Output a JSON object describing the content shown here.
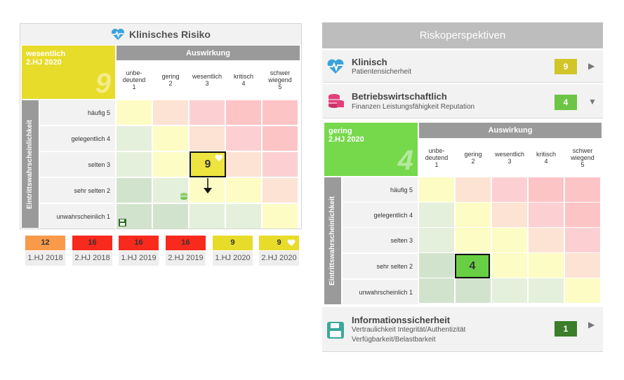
{
  "colors": {
    "green_dark": "#d2e3cd",
    "green_light": "#e5f0dc",
    "yellow": "#fdfcc5",
    "peach": "#fde3d3",
    "pink": "#fcd0d2",
    "red": "#fdc4c6",
    "status_yellow": "#e8dc2a",
    "status_green": "#76d84b",
    "marker_yellow": "#eee43f",
    "marker_green": "#68cf44"
  },
  "left": {
    "title": "Klinisches Risiko",
    "status_label": "wesentlich",
    "status_period": "2.HJ 2020",
    "status_value": "9",
    "axis_top": "Auswirkung",
    "axis_side": "Eintrittswahrscheinlichkeit",
    "columns": [
      "unbe-\ndeutend\n1",
      "gering\n2",
      "wesentlich\n3",
      "kritisch\n4",
      "schwer\nwiegend\n5"
    ],
    "rows": [
      "häufig 5",
      "gelegentlich 4",
      "selten 3",
      "sehr selten 2",
      "unwahrscheinlich 1"
    ],
    "marker_value": "9",
    "history": [
      {
        "value": "12",
        "label": "1.HJ 2018",
        "color": "#f99a4a"
      },
      {
        "value": "16",
        "label": "2.HJ 2018",
        "color": "#f72a1d"
      },
      {
        "value": "16",
        "label": "1.HJ 2019",
        "color": "#f72a1d"
      },
      {
        "value": "16",
        "label": "2.HJ 2019",
        "color": "#f72a1d"
      },
      {
        "value": "9",
        "label": "1.HJ 2020",
        "color": "#e8dc2a"
      },
      {
        "value": "9",
        "label": "2.HJ 2020",
        "color": "#e8dc2a"
      }
    ]
  },
  "right": {
    "title": "Riskoperspektiven",
    "perspectives": [
      {
        "title": "Klinisch",
        "sub": "Patientensicherheit",
        "score": "9",
        "score_color": "#d1c52a",
        "icon": "heart-pulse-icon"
      },
      {
        "title": "Betriebswirtschaftlich",
        "sub": "Finanzen Leistungsfähigkeit Reputation",
        "score": "4",
        "score_color": "#6cc545",
        "icon": "coins-icon"
      },
      {
        "title": "Informationssicherheit",
        "sub": "Vertraulichkeit Integrität/Authentizität",
        "sub2": "Verfügbarkeit/Belastbarkeit",
        "score": "1",
        "score_color": "#3b7d2a",
        "icon": "floppy-disk-icon"
      }
    ],
    "matrix": {
      "status_label": "gering",
      "status_period": "2.HJ 2020",
      "status_value": "4",
      "axis_top": "Auswirkung",
      "axis_side": "Eintrittswahrscheinlichkeit",
      "columns": [
        "unbe-\ndeutend\n1",
        "gering\n2",
        "wesentlich\n3",
        "kritisch\n4",
        "schwer\nwiegend\n5"
      ],
      "rows": [
        "häufig 5",
        "gelegentlich 4",
        "selten 3",
        "sehr selten 2",
        "unwahrscheinlich 1"
      ],
      "marker_value": "4"
    }
  }
}
